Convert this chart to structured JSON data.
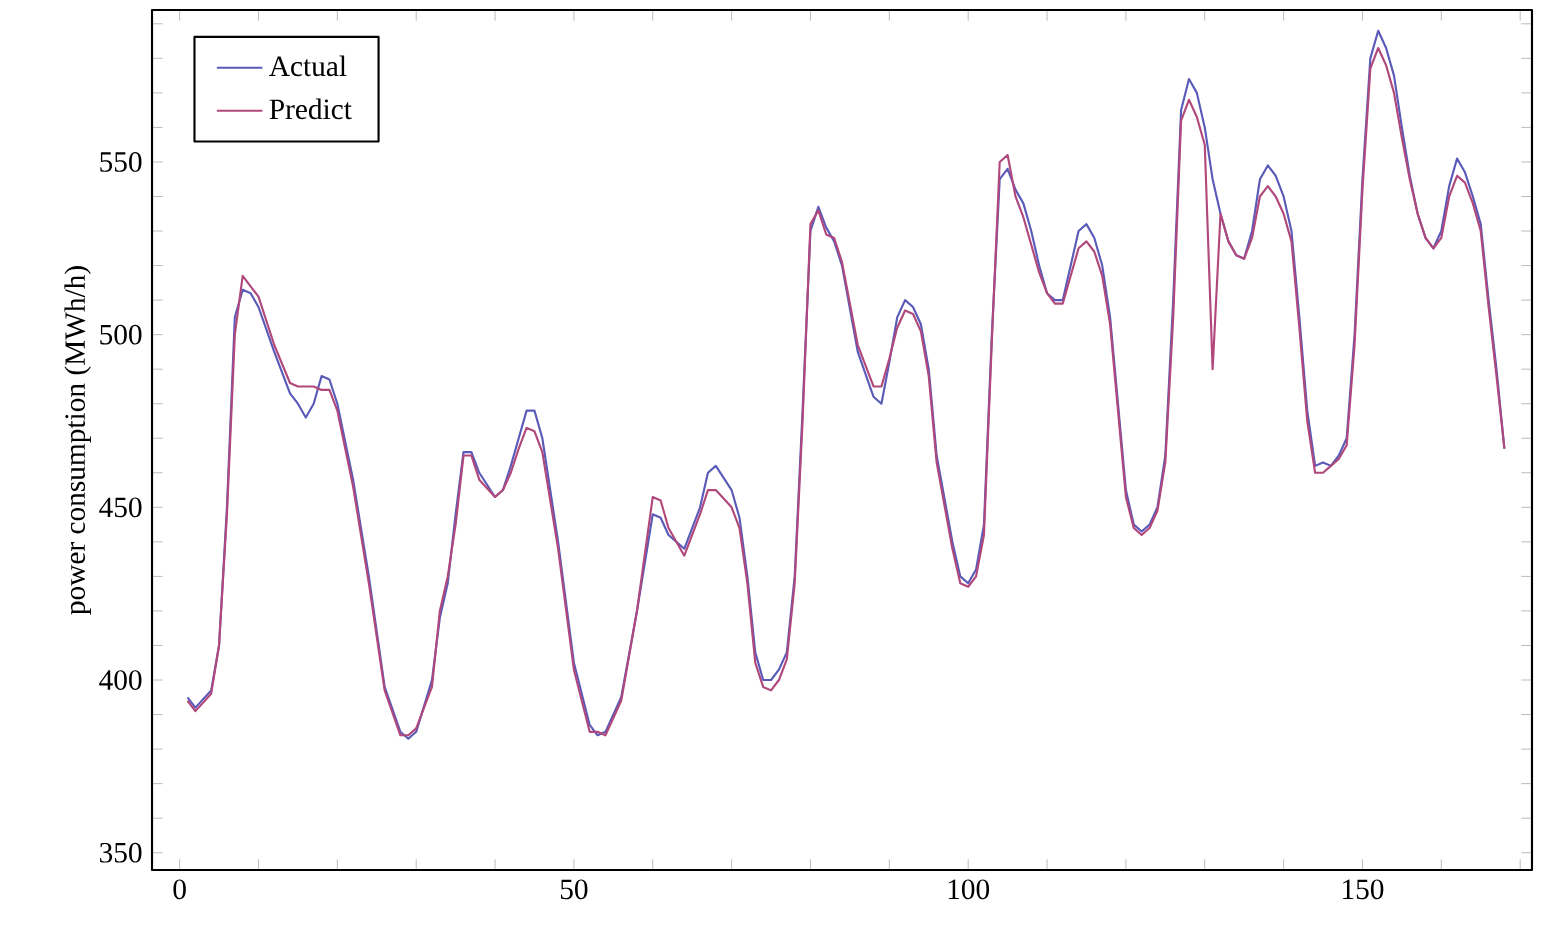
{
  "chart_data": {
    "type": "line",
    "ylabel": "power consumption (MWh/h)",
    "xlim": [
      -3.5,
      171.5
    ],
    "ylim": [
      345,
      594
    ],
    "xticks": [
      0,
      {
        "value": 10,
        "label": null
      },
      {
        "value": 20,
        "label": null
      },
      {
        "value": 30,
        "label": null
      },
      {
        "value": 40,
        "label": null
      },
      50,
      {
        "value": 60,
        "label": null
      },
      {
        "value": 70,
        "label": null
      },
      {
        "value": 80,
        "label": null
      },
      {
        "value": 90,
        "label": null
      },
      100,
      {
        "value": 110,
        "label": null
      },
      {
        "value": 120,
        "label": null
      },
      {
        "value": 130,
        "label": null
      },
      {
        "value": 140,
        "label": null
      },
      150,
      {
        "value": 160,
        "label": null
      },
      {
        "value": 170,
        "label": null
      }
    ],
    "yticks": [
      350,
      {
        "value": 360,
        "label": null
      },
      {
        "value": 370,
        "label": null
      },
      {
        "value": 380,
        "label": null
      },
      {
        "value": 390,
        "label": null
      },
      400,
      {
        "value": 410,
        "label": null
      },
      {
        "value": 420,
        "label": null
      },
      {
        "value": 430,
        "label": null
      },
      {
        "value": 440,
        "label": null
      },
      450,
      {
        "value": 460,
        "label": null
      },
      {
        "value": 470,
        "label": null
      },
      {
        "value": 480,
        "label": null
      },
      {
        "value": 490,
        "label": null
      },
      500,
      {
        "value": 510,
        "label": null
      },
      {
        "value": 520,
        "label": null
      },
      {
        "value": 530,
        "label": null
      },
      {
        "value": 540,
        "label": null
      },
      550,
      {
        "value": 560,
        "label": null
      },
      {
        "value": 570,
        "label": null
      },
      {
        "value": 580,
        "label": null
      },
      {
        "value": 590,
        "label": null
      }
    ],
    "legend": "top left",
    "grid": false,
    "marker": "none",
    "line_style": "solid",
    "series": [
      {
        "name": "Actual",
        "color": "#5a5ab8",
        "x": [
          1,
          2,
          4,
          5,
          6,
          7,
          8,
          9,
          10,
          12,
          14,
          15,
          16,
          17,
          18,
          19,
          20,
          22,
          24,
          26,
          28,
          29,
          30,
          32,
          33,
          34,
          35,
          36,
          37,
          38,
          40,
          41,
          42,
          43,
          44,
          45,
          46,
          48,
          50,
          52,
          53,
          54,
          56,
          58,
          60,
          61,
          62,
          64,
          66,
          67,
          68,
          70,
          71,
          72,
          73,
          74,
          75,
          76,
          77,
          78,
          79,
          80,
          81,
          82,
          83,
          84,
          86,
          88,
          89,
          90,
          91,
          92,
          93,
          94,
          95,
          96,
          98,
          99,
          100,
          101,
          102,
          103,
          104,
          105,
          106,
          107,
          108,
          109,
          110,
          111,
          112,
          113,
          114,
          115,
          116,
          117,
          118,
          119,
          120,
          121,
          122,
          123,
          124,
          125,
          126,
          127,
          128,
          129,
          130,
          131,
          132,
          133,
          134,
          135,
          136,
          137,
          138,
          139,
          140,
          141,
          142,
          143,
          144,
          145,
          146,
          147,
          148,
          149,
          150,
          151,
          152,
          153,
          154,
          155,
          156,
          157,
          158,
          159,
          160,
          161,
          162,
          163,
          164,
          165,
          166,
          167,
          168
        ],
        "values": [
          395,
          392,
          397,
          410,
          450,
          505,
          513,
          512,
          508,
          495,
          483,
          480,
          476,
          480,
          488,
          487,
          480,
          458,
          430,
          398,
          385,
          383,
          385,
          400,
          418,
          428,
          448,
          466,
          466,
          460,
          453,
          455,
          462,
          470,
          478,
          478,
          470,
          440,
          405,
          387,
          384,
          385,
          395,
          420,
          448,
          447,
          442,
          438,
          450,
          460,
          462,
          455,
          447,
          430,
          408,
          400,
          400,
          403,
          408,
          430,
          478,
          530,
          537,
          531,
          527,
          520,
          495,
          482,
          480,
          492,
          505,
          510,
          508,
          503,
          490,
          465,
          440,
          430,
          428,
          432,
          445,
          500,
          545,
          548,
          542,
          538,
          530,
          520,
          512,
          510,
          510,
          520,
          530,
          532,
          528,
          520,
          505,
          480,
          455,
          445,
          443,
          445,
          450,
          465,
          510,
          565,
          574,
          570,
          560,
          545,
          535,
          527,
          523,
          522,
          530,
          545,
          549,
          546,
          540,
          530,
          505,
          478,
          462,
          463,
          462,
          465,
          470,
          500,
          545,
          580,
          588,
          583,
          575,
          560,
          546,
          535,
          528,
          525,
          530,
          543,
          551,
          547,
          540,
          532,
          510,
          490,
          467
        ]
      },
      {
        "name": "Predict",
        "color": "#b0487c",
        "x": [
          1,
          2,
          4,
          5,
          6,
          7,
          8,
          9,
          10,
          12,
          14,
          15,
          16,
          17,
          18,
          19,
          20,
          22,
          24,
          26,
          28,
          29,
          30,
          32,
          33,
          34,
          35,
          36,
          37,
          38,
          40,
          41,
          42,
          43,
          44,
          45,
          46,
          48,
          50,
          52,
          53,
          54,
          56,
          58,
          60,
          61,
          62,
          64,
          66,
          67,
          68,
          70,
          71,
          72,
          73,
          74,
          75,
          76,
          77,
          78,
          79,
          80,
          81,
          82,
          83,
          84,
          86,
          88,
          89,
          90,
          91,
          92,
          93,
          94,
          95,
          96,
          98,
          99,
          100,
          101,
          102,
          103,
          104,
          105,
          106,
          107,
          108,
          109,
          110,
          111,
          112,
          113,
          114,
          115,
          116,
          117,
          118,
          119,
          120,
          121,
          122,
          123,
          124,
          125,
          126,
          127,
          128,
          129,
          130,
          131,
          132,
          133,
          134,
          135,
          136,
          137,
          138,
          139,
          140,
          141,
          142,
          143,
          144,
          145,
          146,
          147,
          148,
          149,
          150,
          151,
          152,
          153,
          154,
          155,
          156,
          157,
          158,
          159,
          160,
          161,
          162,
          163,
          164,
          165,
          166,
          167,
          168
        ],
        "values": [
          394,
          391,
          396,
          410,
          448,
          500,
          517,
          514,
          511,
          497,
          486,
          485,
          485,
          485,
          484,
          484,
          478,
          456,
          428,
          397,
          384,
          384,
          386,
          398,
          420,
          430,
          445,
          465,
          465,
          458,
          453,
          455,
          460,
          467,
          473,
          472,
          466,
          438,
          403,
          385,
          385,
          384,
          394,
          420,
          453,
          452,
          444,
          436,
          448,
          455,
          455,
          450,
          444,
          428,
          405,
          398,
          397,
          400,
          406,
          428,
          475,
          532,
          536,
          529,
          528,
          521,
          497,
          485,
          485,
          493,
          502,
          507,
          506,
          501,
          488,
          463,
          438,
          428,
          427,
          430,
          442,
          498,
          550,
          552,
          540,
          534,
          526,
          518,
          512,
          509,
          509,
          517,
          525,
          527,
          524,
          517,
          503,
          478,
          453,
          444,
          442,
          444,
          449,
          463,
          505,
          562,
          568,
          563,
          555,
          490,
          535,
          527,
          523,
          522,
          528,
          540,
          543,
          540,
          535,
          527,
          502,
          475,
          460,
          460,
          462,
          464,
          468,
          497,
          542,
          577,
          583,
          578,
          570,
          557,
          545,
          535,
          528,
          525,
          528,
          540,
          546,
          544,
          538,
          530,
          508,
          488,
          467
        ]
      }
    ]
  }
}
